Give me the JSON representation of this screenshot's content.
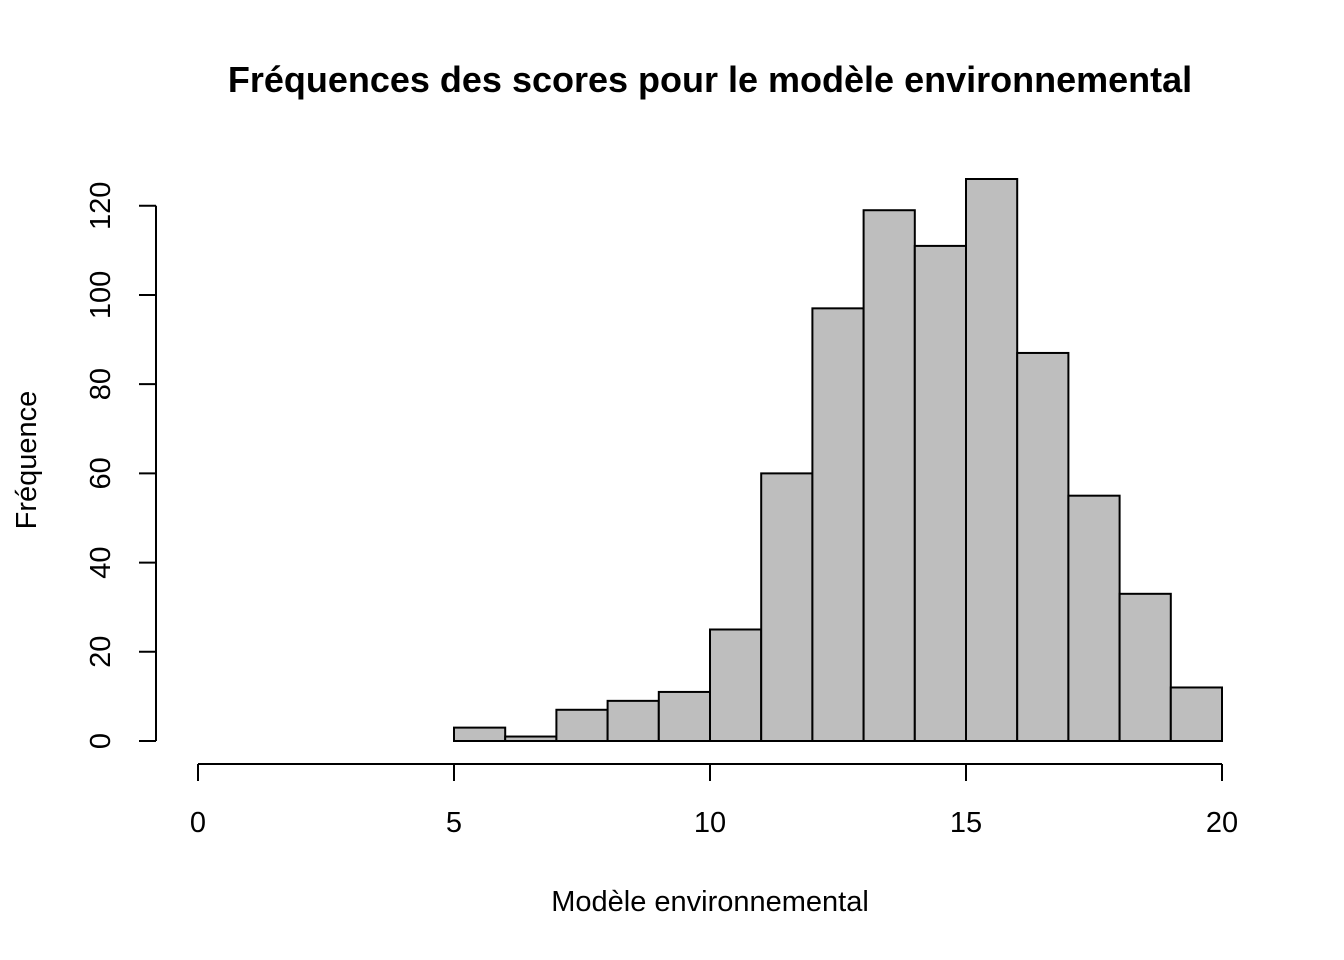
{
  "chart_data": {
    "type": "bar",
    "title": "Fréquences des scores pour le modèle environnemental",
    "xlabel": "Modèle environnemental",
    "ylabel": "Fréquence",
    "xlim": [
      0,
      20
    ],
    "ylim": [
      0,
      126
    ],
    "x_ticks": [
      0,
      5,
      10,
      15,
      20
    ],
    "y_ticks": [
      0,
      20,
      40,
      60,
      80,
      100,
      120
    ],
    "bin_edges": [
      5,
      6,
      7,
      8,
      9,
      10,
      11,
      12,
      13,
      14,
      15,
      16,
      17,
      18,
      19,
      20
    ],
    "values": [
      3,
      1,
      7,
      9,
      11,
      25,
      60,
      97,
      119,
      111,
      126,
      87,
      55,
      33,
      12
    ],
    "bar_color": "#bebebe",
    "grid": false,
    "legend": "none"
  }
}
